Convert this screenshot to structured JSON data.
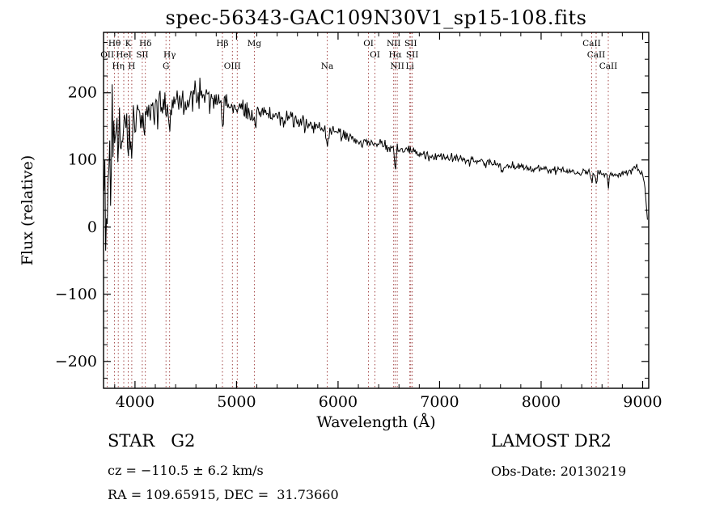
{
  "title": "spec-56343-GAC109N30V1_sp15-108.fits",
  "footer": {
    "class_label": "STAR   G2",
    "survey": "LAMOST DR2",
    "cz": "cz = −110.5 ± 6.2 km/s",
    "obs_date": "Obs-Date: 20130219",
    "radec": "RA = 109.65915, DEC =  31.73660"
  },
  "chart_data": {
    "type": "line",
    "title": "spec-56343-GAC109N30V1_sp15-108.fits",
    "xlabel": "Wavelength (Å)",
    "ylabel": "Flux (relative)",
    "xlim": [
      3690,
      9060
    ],
    "ylim": [
      -240,
      290
    ],
    "xticks": [
      4000,
      5000,
      6000,
      7000,
      8000,
      9000
    ],
    "yticks": [
      -200,
      -100,
      0,
      100,
      200
    ],
    "x_minor_step": 200,
    "y_minor_step": 25,
    "grid": false,
    "legend": "none",
    "line_color": "#000000",
    "marker_line_color": "#993333",
    "line_markers": [
      {
        "wavelength": 3727,
        "label": "OII",
        "row": 2
      },
      {
        "wavelength": 3798,
        "label": "Hθ",
        "row": 1
      },
      {
        "wavelength": 3835,
        "label": "Hη",
        "row": 3
      },
      {
        "wavelength": 3889,
        "label": "HeI",
        "row": 2
      },
      {
        "wavelength": 3933,
        "label": "K",
        "row": 1
      },
      {
        "wavelength": 3968,
        "label": "H",
        "row": 3
      },
      {
        "wavelength": 4072,
        "label": "SII",
        "row": 2
      },
      {
        "wavelength": 4102,
        "label": "Hδ",
        "row": 1
      },
      {
        "wavelength": 4305,
        "label": "G",
        "row": 3
      },
      {
        "wavelength": 4341,
        "label": "Hγ",
        "row": 2
      },
      {
        "wavelength": 4861,
        "label": "Hβ",
        "row": 1
      },
      {
        "wavelength": 4959,
        "label": "OIII",
        "row": 3
      },
      {
        "wavelength": 5007,
        "label": "",
        "row": 3
      },
      {
        "wavelength": 5175,
        "label": "Mg",
        "row": 1
      },
      {
        "wavelength": 5893,
        "label": "Na",
        "row": 3
      },
      {
        "wavelength": 6300,
        "label": "OI",
        "row": 1
      },
      {
        "wavelength": 6363,
        "label": "OI",
        "row": 2
      },
      {
        "wavelength": 6548,
        "label": "NII",
        "row": 1
      },
      {
        "wavelength": 6563,
        "label": "Hα",
        "row": 2
      },
      {
        "wavelength": 6583,
        "label": "NII",
        "row": 3
      },
      {
        "wavelength": 6707,
        "label": "Li",
        "row": 3
      },
      {
        "wavelength": 6716,
        "label": "SII",
        "row": 1
      },
      {
        "wavelength": 6731,
        "label": "SII",
        "row": 2
      },
      {
        "wavelength": 8498,
        "label": "CaII",
        "row": 1
      },
      {
        "wavelength": 8542,
        "label": "CaII",
        "row": 2
      },
      {
        "wavelength": 8662,
        "label": "CaII",
        "row": 3
      }
    ],
    "spectrum_model": {
      "seed": 56343,
      "wave_start": 3695,
      "wave_end": 9052,
      "step": 8,
      "continuum": [
        [
          3700,
          40
        ],
        [
          3720,
          70
        ],
        [
          3740,
          95
        ],
        [
          3760,
          110
        ],
        [
          3780,
          120
        ],
        [
          3800,
          130
        ],
        [
          3850,
          148
        ],
        [
          3900,
          158
        ],
        [
          3950,
          163
        ],
        [
          4000,
          168
        ],
        [
          4050,
          170
        ],
        [
          4100,
          170
        ],
        [
          4150,
          172
        ],
        [
          4200,
          172
        ],
        [
          4250,
          174
        ],
        [
          4300,
          176
        ],
        [
          4350,
          180
        ],
        [
          4400,
          186
        ],
        [
          4500,
          192
        ],
        [
          4600,
          196
        ],
        [
          4700,
          197
        ],
        [
          4800,
          190
        ],
        [
          4900,
          182
        ],
        [
          5000,
          177
        ],
        [
          5100,
          173
        ],
        [
          5200,
          170
        ],
        [
          5300,
          168
        ],
        [
          5400,
          164
        ],
        [
          5500,
          160
        ],
        [
          5600,
          156
        ],
        [
          5700,
          152
        ],
        [
          5800,
          148
        ],
        [
          5900,
          143
        ],
        [
          6000,
          139
        ],
        [
          6100,
          135
        ],
        [
          6200,
          131
        ],
        [
          6300,
          127
        ],
        [
          6400,
          124
        ],
        [
          6500,
          120
        ],
        [
          6600,
          116
        ],
        [
          6700,
          113
        ],
        [
          6800,
          110
        ],
        [
          6900,
          107
        ],
        [
          7000,
          105
        ],
        [
          7100,
          103
        ],
        [
          7200,
          101
        ],
        [
          7300,
          99
        ],
        [
          7400,
          97
        ],
        [
          7500,
          95
        ],
        [
          7600,
          93
        ],
        [
          7700,
          91
        ],
        [
          7800,
          90
        ],
        [
          7900,
          88
        ],
        [
          8000,
          87
        ],
        [
          8100,
          85
        ],
        [
          8200,
          84
        ],
        [
          8300,
          83
        ],
        [
          8400,
          82
        ],
        [
          8500,
          80
        ],
        [
          8600,
          79
        ],
        [
          8700,
          79
        ],
        [
          8800,
          80
        ],
        [
          8900,
          84
        ],
        [
          8950,
          88
        ],
        [
          9000,
          80
        ],
        [
          9020,
          60
        ],
        [
          9040,
          25
        ],
        [
          9052,
          0
        ]
      ],
      "noise_amp": [
        [
          3695,
          90
        ],
        [
          3730,
          85
        ],
        [
          3760,
          75
        ],
        [
          3800,
          60
        ],
        [
          3850,
          50
        ],
        [
          3900,
          44
        ],
        [
          3950,
          40
        ],
        [
          4000,
          34
        ],
        [
          4100,
          28
        ],
        [
          4200,
          26
        ],
        [
          4300,
          24
        ],
        [
          4400,
          22
        ],
        [
          4500,
          20
        ],
        [
          4700,
          19
        ],
        [
          4900,
          14
        ],
        [
          5100,
          12
        ],
        [
          5300,
          11
        ],
        [
          5500,
          10
        ],
        [
          5800,
          9
        ],
        [
          6100,
          8
        ],
        [
          6500,
          7
        ],
        [
          7000,
          6
        ],
        [
          7500,
          5.5
        ],
        [
          8000,
          5
        ],
        [
          8500,
          5
        ],
        [
          9000,
          5
        ],
        [
          9052,
          4
        ]
      ],
      "absorption_dips": [
        [
          3933,
          55,
          7
        ],
        [
          3968,
          55,
          7
        ],
        [
          4102,
          40,
          7
        ],
        [
          4305,
          22,
          9
        ],
        [
          4341,
          35,
          7
        ],
        [
          4861,
          35,
          7
        ],
        [
          5175,
          16,
          12
        ],
        [
          5893,
          20,
          9
        ],
        [
          6563,
          30,
          7
        ],
        [
          7620,
          10,
          12
        ],
        [
          8498,
          14,
          7
        ],
        [
          8542,
          18,
          7
        ],
        [
          8662,
          16,
          7
        ]
      ]
    }
  }
}
